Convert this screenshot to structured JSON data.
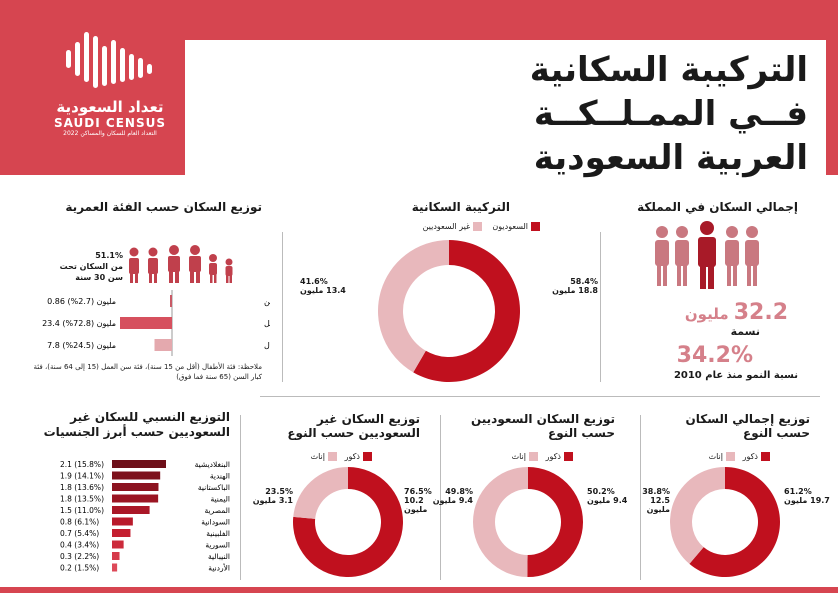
{
  "logo": {
    "ar": "تعداد السعودية",
    "en": "SAUDI CENSUS",
    "sub": "التعداد العام للسكان والمساكن 2022"
  },
  "title": {
    "line1": "التركيبة السكانية",
    "line2": "فــي الممـلــكــة",
    "line3": "العربية السعودية"
  },
  "colors": {
    "dark_red": "#c0101e",
    "light_pink": "#e8b8bc",
    "brand": "#d64550"
  },
  "total_population": {
    "title": "إجمالي السكان في المملكة",
    "value": "32.2",
    "unit": "مليون",
    "label": "نسمة",
    "growth": "34.2%",
    "growth_label": "نسبة النمو منذ عام 2010"
  },
  "composition": {
    "title": "التركيبة السكانية",
    "legend_saudi": "السعوديون",
    "legend_non": "غير السعوديين",
    "saudi_label": "58.4%",
    "saudi_val": "18.8 مليون",
    "non_label": "41.6%",
    "non_val": "13.4 مليون"
  },
  "age": {
    "title": "توزيع السكان حسب الفئة العمرية",
    "under30_pct": "51.1%",
    "under30_text": "من السكان تحت سن 30 سنة",
    "rows": [
      {
        "label": "كبار السن",
        "value": "0.86 مليون (2.7%)"
      },
      {
        "label": "السكان في سن العمل",
        "value": "23.4 مليون (72.8%)"
      },
      {
        "label": "فئة الأطفال",
        "value": "7.8 مليون (24.5%)"
      }
    ],
    "note": "ملاحظة: فئة الأطفال (أقل من 15 سنة)، فئة سن العمل (15 إلى 64 سنة)، فئة كبار السن (65 سنة فما فوق)"
  },
  "gender_labels": {
    "male": "ذكور",
    "female": "إناث"
  },
  "gender_total": {
    "title": "توزيع إجمالي السكان حسب النوع",
    "male_pct": "61.2%",
    "male_val": "19.7 مليون",
    "female_pct": "38.8%",
    "female_val": "12.5 مليون"
  },
  "gender_saudi": {
    "title": "توزيع السكان السعوديين حسب النوع",
    "male_pct": "50.2%",
    "male_val": "9.4 مليون",
    "female_pct": "49.8%",
    "female_val": "9.4 مليون"
  },
  "gender_non": {
    "title": "توزيع السكان غير السعوديين حسب النوع",
    "male_pct": "76.5%",
    "male_val": "10.2 مليون",
    "female_pct": "23.5%",
    "female_val": "3.1 مليون"
  },
  "nationalities": {
    "title": "التوزيع النسبي للسكان غير السعوديين حسب أبرز الجنسيات",
    "rows": [
      {
        "label": "البنغلاديشية",
        "value": "2.1 (15.8%)"
      },
      {
        "label": "الهندية",
        "value": "1.9 (14.1%)"
      },
      {
        "label": "الباكستانية",
        "value": "1.8 (13.6%)"
      },
      {
        "label": "اليمنية",
        "value": "1.8 (13.5%)"
      },
      {
        "label": "المصرية",
        "value": "1.5 (11.0%)"
      },
      {
        "label": "السودانية",
        "value": "0.8 (6.1%)"
      },
      {
        "label": "الفلبينية",
        "value": "0.7 (5.4%)"
      },
      {
        "label": "السورية",
        "value": "0.4 (3.4%)"
      },
      {
        "label": "النيبالية",
        "value": "0.3 (2.2%)"
      },
      {
        "label": "الأردنية",
        "value": "0.2 (1.5%)"
      }
    ]
  },
  "chart_data": [
    {
      "type": "pie",
      "title": "التركيبة السكانية",
      "categories": [
        "السعوديون",
        "غير السعوديين"
      ],
      "values": [
        58.4,
        41.6
      ]
    },
    {
      "type": "bar",
      "title": "توزيع السكان حسب الفئة العمرية",
      "categories": [
        "كبار السن",
        "السكان في سن العمل",
        "فئة الأطفال"
      ],
      "values": [
        2.7,
        72.8,
        24.5
      ]
    },
    {
      "type": "pie",
      "title": "توزيع إجمالي السكان حسب النوع",
      "categories": [
        "ذكور",
        "إناث"
      ],
      "values": [
        61.2,
        38.8
      ]
    },
    {
      "type": "pie",
      "title": "توزيع السكان السعوديين حسب النوع",
      "categories": [
        "ذكور",
        "إناث"
      ],
      "values": [
        50.2,
        49.8
      ]
    },
    {
      "type": "pie",
      "title": "توزيع السكان غير السعوديين حسب النوع",
      "categories": [
        "ذكور",
        "إناث"
      ],
      "values": [
        76.5,
        23.5
      ]
    },
    {
      "type": "bar",
      "title": "التوزيع النسبي للسكان غير السعوديين حسب أبرز الجنسيات",
      "categories": [
        "البنغلاديشية",
        "الهندية",
        "الباكستانية",
        "اليمنية",
        "المصرية",
        "السودانية",
        "الفلبينية",
        "السورية",
        "النيبالية",
        "الأردنية"
      ],
      "values": [
        15.8,
        14.1,
        13.6,
        13.5,
        11.0,
        6.1,
        5.4,
        3.4,
        2.2,
        1.5
      ]
    }
  ]
}
